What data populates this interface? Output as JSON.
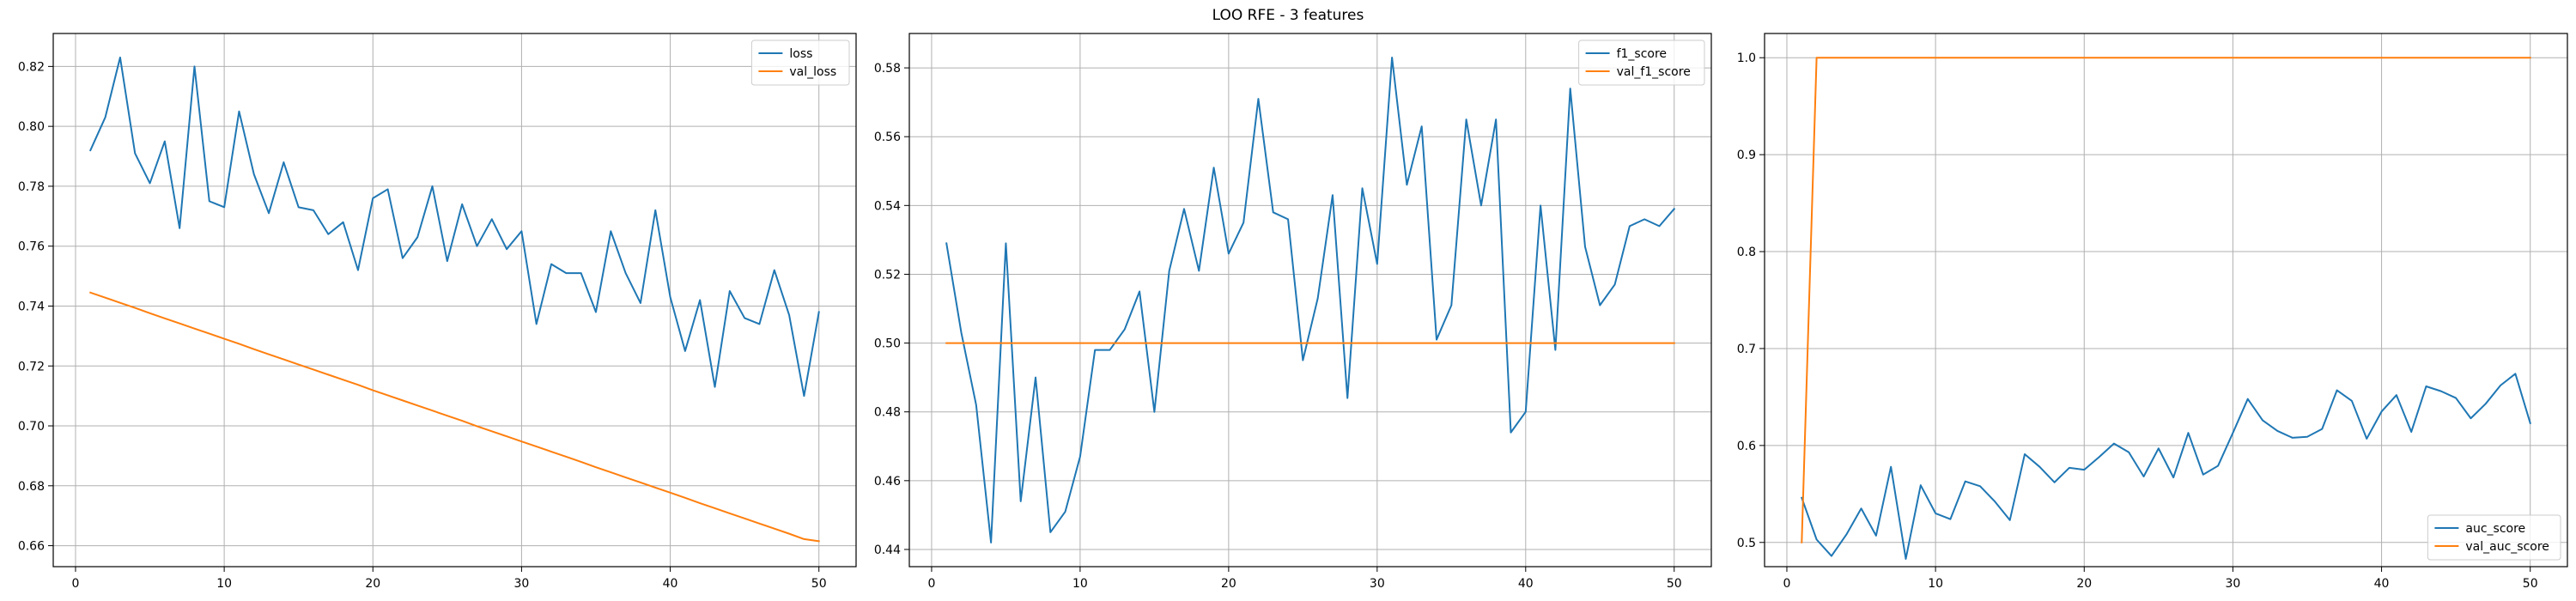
{
  "figure": {
    "suptitle": "LOO RFE - 3 features"
  },
  "colors": {
    "train": "#1f77b4",
    "val": "#ff7f0e",
    "grid": "#b0b0b0",
    "axes": "#000000"
  },
  "chart_data": [
    {
      "type": "line",
      "title": "",
      "xlabel": "",
      "ylabel": "",
      "grid": true,
      "legend_position": "top-right",
      "xlim": [
        -1.5,
        52.5
      ],
      "ylim": [
        0.653,
        0.831
      ],
      "xticks": [
        0,
        10,
        20,
        30,
        40,
        50
      ],
      "yticks": [
        0.66,
        0.68,
        0.7,
        0.72,
        0.74,
        0.76,
        0.78,
        0.8,
        0.82
      ],
      "ytick_labels": [
        "0.66",
        "0.68",
        "0.70",
        "0.72",
        "0.74",
        "0.76",
        "0.78",
        "0.80",
        "0.82"
      ],
      "series": [
        {
          "name": "loss",
          "color": "#1f77b4",
          "x": [
            1,
            2,
            3,
            4,
            5,
            6,
            7,
            8,
            9,
            10,
            11,
            12,
            13,
            14,
            15,
            16,
            17,
            18,
            19,
            20,
            21,
            22,
            23,
            24,
            25,
            26,
            27,
            28,
            29,
            30,
            31,
            32,
            33,
            34,
            35,
            36,
            37,
            38,
            39,
            40,
            41,
            42,
            43,
            44,
            45,
            46,
            47,
            48,
            49,
            50
          ],
          "values": [
            0.792,
            0.803,
            0.823,
            0.791,
            0.781,
            0.795,
            0.766,
            0.82,
            0.775,
            0.773,
            0.805,
            0.784,
            0.771,
            0.788,
            0.773,
            0.772,
            0.764,
            0.768,
            0.752,
            0.776,
            0.779,
            0.756,
            0.763,
            0.78,
            0.755,
            0.774,
            0.76,
            0.769,
            0.759,
            0.765,
            0.734,
            0.754,
            0.751,
            0.751,
            0.738,
            0.765,
            0.751,
            0.741,
            0.772,
            0.743,
            0.725,
            0.742,
            0.713,
            0.745,
            0.736,
            0.734,
            0.752,
            0.737,
            0.71,
            0.738
          ]
        },
        {
          "name": "val_loss",
          "color": "#ff7f0e",
          "x": [
            1,
            2,
            3,
            4,
            5,
            6,
            7,
            8,
            9,
            10,
            11,
            12,
            13,
            14,
            15,
            16,
            17,
            18,
            19,
            20,
            21,
            22,
            23,
            24,
            25,
            26,
            27,
            28,
            29,
            30,
            31,
            32,
            33,
            34,
            35,
            36,
            37,
            38,
            39,
            40,
            41,
            42,
            43,
            44,
            45,
            46,
            47,
            48,
            49,
            50
          ],
          "values": [
            0.7445,
            0.7428,
            0.7411,
            0.7394,
            0.7376,
            0.7359,
            0.7342,
            0.7325,
            0.7308,
            0.7291,
            0.7274,
            0.7256,
            0.7239,
            0.7222,
            0.7205,
            0.7188,
            0.7171,
            0.7154,
            0.7137,
            0.7119,
            0.7102,
            0.7085,
            0.7068,
            0.7051,
            0.7034,
            0.7017,
            0.6999,
            0.6982,
            0.6965,
            0.6948,
            0.6931,
            0.6914,
            0.6897,
            0.688,
            0.6862,
            0.6845,
            0.6828,
            0.6811,
            0.6794,
            0.6777,
            0.676,
            0.6742,
            0.6725,
            0.6708,
            0.6691,
            0.6674,
            0.6657,
            0.664,
            0.6622,
            0.6615
          ]
        }
      ]
    },
    {
      "type": "line",
      "title": "",
      "xlabel": "",
      "ylabel": "",
      "grid": true,
      "legend_position": "top-right",
      "xlim": [
        -1.5,
        52.5
      ],
      "ylim": [
        0.435,
        0.59
      ],
      "xticks": [
        0,
        10,
        20,
        30,
        40,
        50
      ],
      "yticks": [
        0.44,
        0.46,
        0.48,
        0.5,
        0.52,
        0.54,
        0.56,
        0.58
      ],
      "ytick_labels": [
        "0.44",
        "0.46",
        "0.48",
        "0.50",
        "0.52",
        "0.54",
        "0.56",
        "0.58"
      ],
      "series": [
        {
          "name": "f1_score",
          "color": "#1f77b4",
          "x": [
            1,
            2,
            3,
            4,
            5,
            6,
            7,
            8,
            9,
            10,
            11,
            12,
            13,
            14,
            15,
            16,
            17,
            18,
            19,
            20,
            21,
            22,
            23,
            24,
            25,
            26,
            27,
            28,
            29,
            30,
            31,
            32,
            33,
            34,
            35,
            36,
            37,
            38,
            39,
            40,
            41,
            42,
            43,
            44,
            45,
            46,
            47,
            48,
            49,
            50
          ],
          "values": [
            0.529,
            0.503,
            0.482,
            0.442,
            0.529,
            0.454,
            0.49,
            0.445,
            0.451,
            0.467,
            0.498,
            0.498,
            0.504,
            0.515,
            0.48,
            0.521,
            0.539,
            0.521,
            0.551,
            0.526,
            0.535,
            0.571,
            0.538,
            0.536,
            0.495,
            0.513,
            0.543,
            0.484,
            0.545,
            0.523,
            0.583,
            0.546,
            0.563,
            0.501,
            0.511,
            0.565,
            0.54,
            0.565,
            0.474,
            0.48,
            0.54,
            0.498,
            0.574,
            0.528,
            0.511,
            0.517,
            0.534,
            0.536,
            0.534,
            0.539
          ]
        },
        {
          "name": "val_f1_score",
          "color": "#ff7f0e",
          "x": [
            1,
            50
          ],
          "values": [
            0.5,
            0.5
          ]
        }
      ]
    },
    {
      "type": "line",
      "title": "",
      "xlabel": "",
      "ylabel": "",
      "grid": true,
      "legend_position": "bottom-right",
      "xlim": [
        -1.5,
        52.5
      ],
      "ylim": [
        0.475,
        1.025
      ],
      "xticks": [
        0,
        10,
        20,
        30,
        40,
        50
      ],
      "yticks": [
        0.5,
        0.6,
        0.7,
        0.8,
        0.9,
        1.0
      ],
      "ytick_labels": [
        "0.5",
        "0.6",
        "0.7",
        "0.8",
        "0.9",
        "1.0"
      ],
      "series": [
        {
          "name": "auc_score",
          "color": "#1f77b4",
          "x": [
            1,
            2,
            3,
            4,
            5,
            6,
            7,
            8,
            9,
            10,
            11,
            12,
            13,
            14,
            15,
            16,
            17,
            18,
            19,
            20,
            21,
            22,
            23,
            24,
            25,
            26,
            27,
            28,
            29,
            30,
            31,
            32,
            33,
            34,
            35,
            36,
            37,
            38,
            39,
            40,
            41,
            42,
            43,
            44,
            45,
            46,
            47,
            48,
            49,
            50
          ],
          "values": [
            0.546,
            0.503,
            0.486,
            0.508,
            0.535,
            0.507,
            0.578,
            0.483,
            0.559,
            0.53,
            0.524,
            0.563,
            0.558,
            0.542,
            0.523,
            0.591,
            0.578,
            0.562,
            0.577,
            0.575,
            0.588,
            0.602,
            0.593,
            0.568,
            0.597,
            0.567,
            0.613,
            0.57,
            0.579,
            0.613,
            0.648,
            0.626,
            0.615,
            0.608,
            0.609,
            0.617,
            0.657,
            0.646,
            0.607,
            0.635,
            0.652,
            0.614,
            0.661,
            0.656,
            0.649,
            0.628,
            0.643,
            0.662,
            0.674,
            0.623
          ]
        },
        {
          "name": "val_auc_score",
          "color": "#ff7f0e",
          "x": [
            1,
            2,
            3,
            50
          ],
          "values": [
            0.5,
            1.0,
            1.0,
            1.0
          ]
        }
      ]
    }
  ]
}
